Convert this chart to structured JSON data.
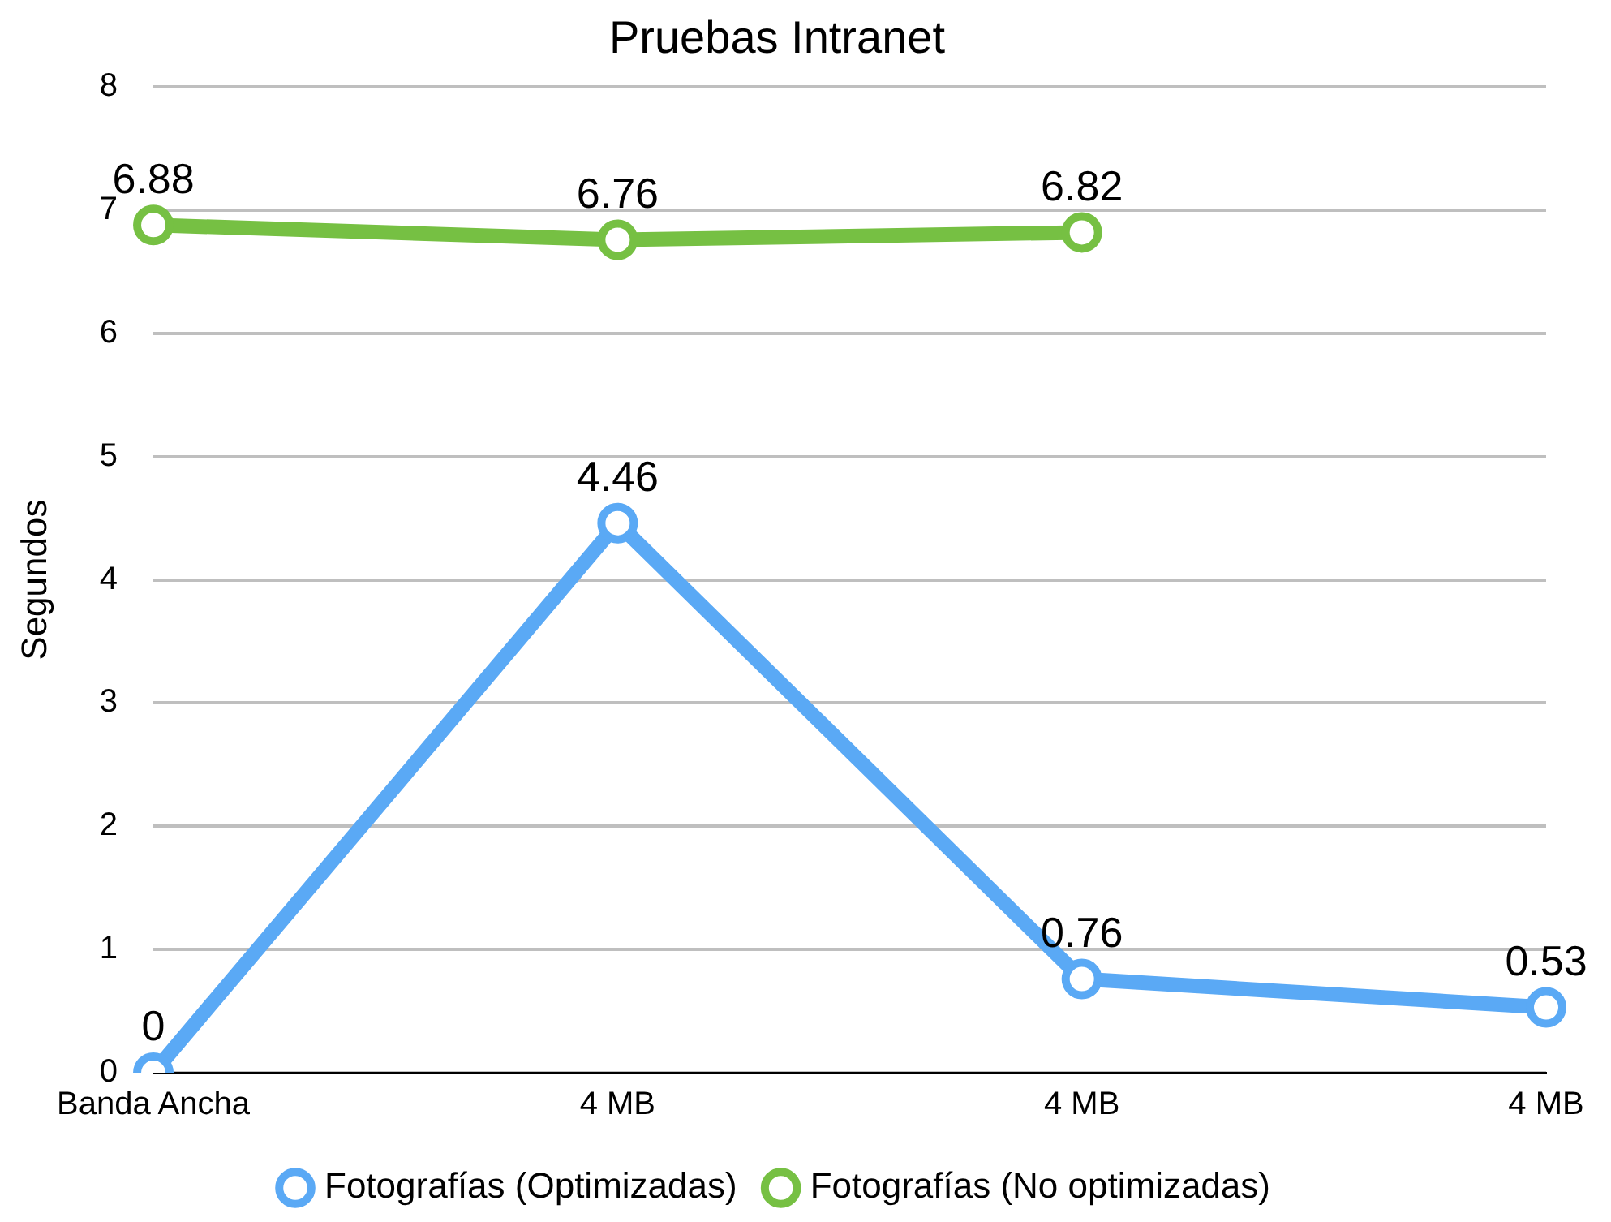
{
  "chart_data": {
    "type": "line",
    "title": "Pruebas Intranet",
    "ylabel": "Segundos",
    "categories": [
      "Banda Ancha",
      "4 MB",
      "4 MB",
      "4 MB"
    ],
    "series": [
      {
        "name": "Fotografías (Optimizadas)",
        "color": "#5aa9f5",
        "values": [
          0,
          4.46,
          0.76,
          0.53
        ]
      },
      {
        "name": "Fotografías (No optimizadas)",
        "color": "#76c043",
        "values": [
          6.88,
          6.76,
          6.82,
          null
        ]
      }
    ],
    "ylim": [
      0,
      8
    ],
    "yticks": [
      0,
      1,
      2,
      3,
      4,
      5,
      6,
      7,
      8
    ],
    "grid": "y",
    "legend": "bottom",
    "marker": "circle",
    "line_style": "solid",
    "data_labels": true
  }
}
